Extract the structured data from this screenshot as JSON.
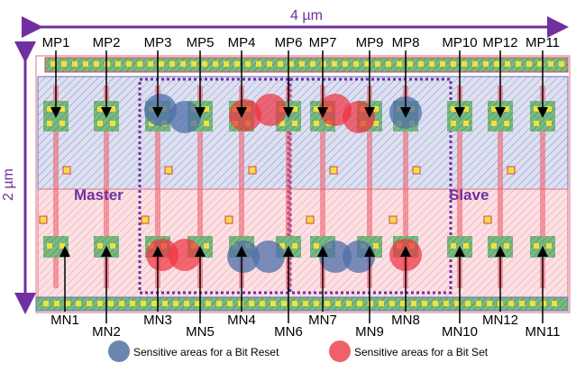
{
  "dimensions": {
    "width": "4 µm",
    "height": "2 µm"
  },
  "top_labels": [
    "MP1",
    "MP2",
    "MP3",
    "MP5",
    "MP4",
    "MP6",
    "MP7",
    "MP9",
    "MP8",
    "MP10",
    "MP12",
    "MP11"
  ],
  "bottom_labels": [
    "MN1",
    "MN2",
    "MN3",
    "MN5",
    "MN4",
    "MN6",
    "MN7",
    "MN9",
    "MN8",
    "MN10",
    "MN12",
    "MN11"
  ],
  "regions": [
    "Master",
    "Slave"
  ],
  "legend": [
    {
      "label": "Sensitive areas for a Bit Reset"
    },
    {
      "label": "Sensitive areas for a Bit Set"
    }
  ]
}
